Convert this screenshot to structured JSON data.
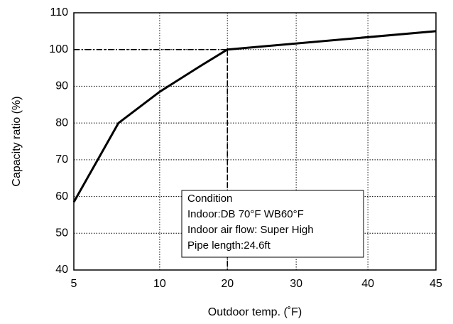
{
  "chart_data": {
    "type": "line",
    "x_label": "Outdoor temp. (˚F)",
    "y_label": "Capacity ratio (%)",
    "x": [
      5,
      7.6,
      10,
      16,
      20,
      45
    ],
    "series": [
      {
        "name": "Capacity ratio",
        "color": "#000000",
        "values": [
          58.5,
          80,
          88.5,
          95.5,
          100,
          105
        ]
      }
    ],
    "xlim": [
      5,
      45
    ],
    "xticks": [
      5,
      10,
      20,
      30,
      40,
      45
    ],
    "ylim": [
      40,
      110
    ],
    "yticks": [
      40,
      50,
      60,
      70,
      80,
      90,
      100,
      110
    ],
    "grid": true,
    "reference": {
      "x": 20,
      "y": 100
    },
    "annotation": [
      "Condition",
      "Indoor:DB 70°F WB60°F",
      "Indoor air flow: Super High",
      "Pipe length:24.6ft"
    ]
  }
}
